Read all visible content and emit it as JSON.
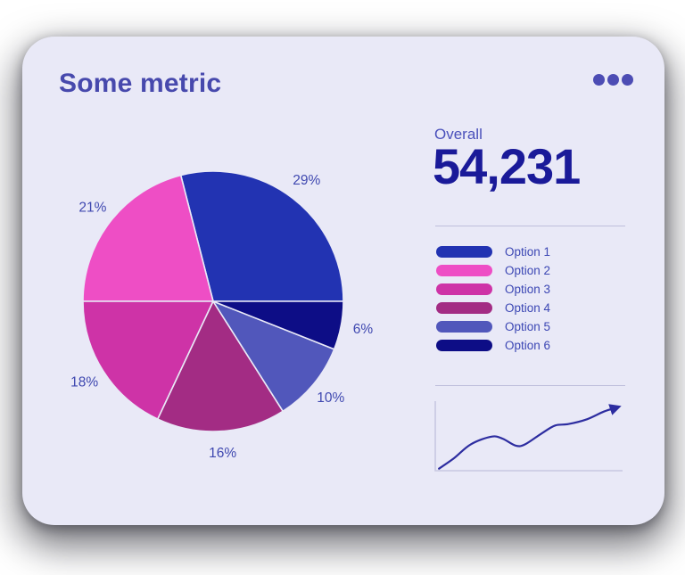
{
  "card": {
    "title": "Some metric",
    "menu_icon": "ellipsis-horizontal",
    "overall": {
      "label": "Overall",
      "value": "54,231"
    }
  },
  "palette": {
    "card_bg": "#e9e9f7",
    "title": "#4749ad",
    "menu_dots": "#4c4cb4",
    "overall_label": "#4a50bb",
    "overall_value": "#1a1a99",
    "divider": "#bfbfdc",
    "legend_text": "#3c47b4",
    "percent_label": "#3f48b0",
    "axis": "#c8c8e2",
    "line": "#2d2da0",
    "slice_separator": "#e9e9f7"
  },
  "chart_data": [
    {
      "type": "pie",
      "labels": [
        "Option 1",
        "Option 2",
        "Option 3",
        "Option 4",
        "Option 5",
        "Option 6"
      ],
      "values_percent": [
        29,
        21,
        18,
        16,
        10,
        6
      ],
      "colors": [
        "#2233b2",
        "#ee4ec5",
        "#ce33a7",
        "#a32c84",
        "#5157bb",
        "#0d0d86"
      ],
      "start_angle_deg": 0,
      "direction": "counterclockwise",
      "label_format": "percent-outside",
      "legend_position": "right"
    },
    {
      "type": "line",
      "title": "trend sparkline, rising with one dip, arrow at end",
      "points": [
        [
          2,
          3
        ],
        [
          10,
          18
        ],
        [
          19,
          38
        ],
        [
          30,
          49
        ],
        [
          36,
          46
        ],
        [
          43,
          36
        ],
        [
          48,
          38
        ],
        [
          57,
          54
        ],
        [
          64,
          65
        ],
        [
          71,
          67
        ],
        [
          81,
          74
        ],
        [
          90,
          85
        ],
        [
          97,
          91
        ]
      ],
      "xlim": [
        0,
        100
      ],
      "ylim": [
        0,
        100
      ],
      "grid": false,
      "axes": "left-and-bottom-only"
    }
  ]
}
